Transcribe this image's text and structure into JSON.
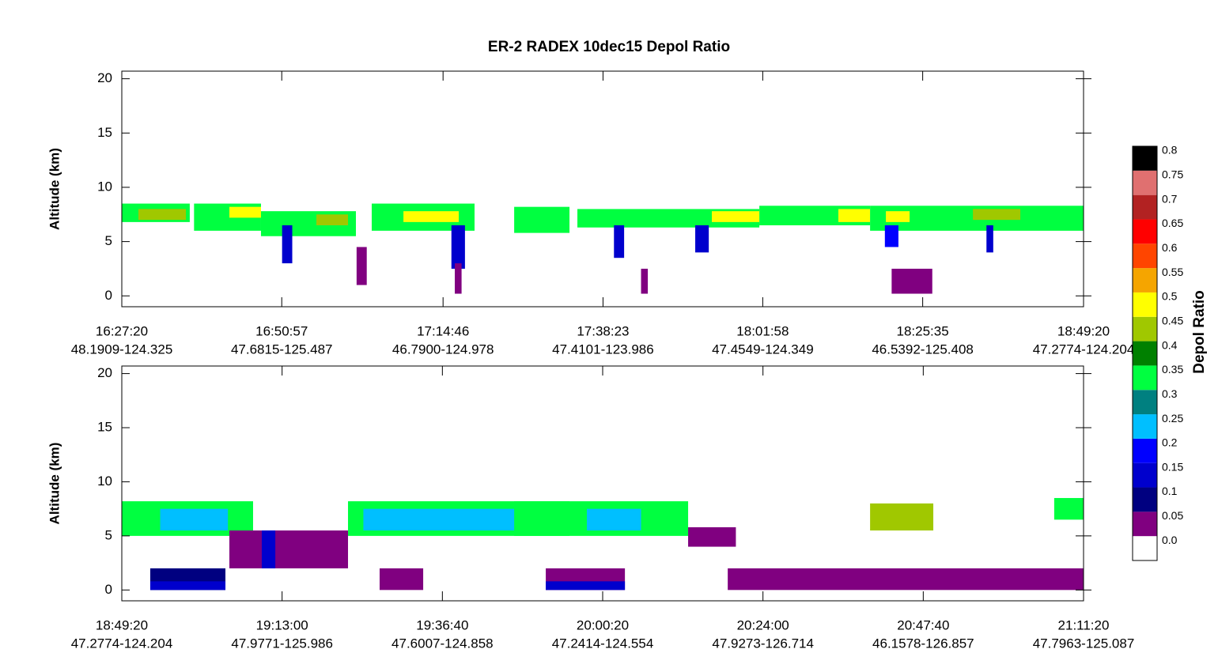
{
  "title": "ER-2 RADEX 10dec15 Depol Ratio",
  "chart_data": [
    {
      "type": "curtain",
      "ylabel": "Altitude (km)",
      "ylim": [
        -1,
        20.7
      ],
      "yticks": [
        0,
        5,
        10,
        15,
        20
      ],
      "xlim": [
        "16:27:20",
        "18:49:20"
      ],
      "xticks": [
        "16:27:20",
        "16:50:57",
        "17:14:46",
        "17:38:23",
        "18:01:58",
        "18:25:35",
        "18:49:20"
      ],
      "xtick_locations": [
        "48.1909-124.325",
        "47.6815-125.487",
        "46.7900-124.978",
        "47.4101-123.986",
        "47.4549-124.349",
        "46.5392-125.408",
        "47.2774-124.204"
      ],
      "segments": [
        {
          "start": "16:27:20",
          "end": "16:37:22",
          "base": 6.8,
          "top": 8.5,
          "value": 0.35
        },
        {
          "start": "16:29:47",
          "end": "16:36:48",
          "base": 7.0,
          "top": 8.0,
          "value": 0.45
        },
        {
          "start": "16:38:00",
          "end": "16:47:53",
          "base": 6.0,
          "top": 8.5,
          "value": 0.35
        },
        {
          "start": "16:43:13",
          "end": "16:47:53",
          "base": 7.2,
          "top": 8.2,
          "value": 0.5
        },
        {
          "start": "16:47:53",
          "end": "17:01:54",
          "base": 5.5,
          "top": 7.8,
          "value": 0.35
        },
        {
          "start": "16:56:04",
          "end": "17:00:44",
          "base": 6.5,
          "top": 7.5,
          "value": 0.45
        },
        {
          "start": "17:04:14",
          "end": "17:19:25",
          "base": 6.0,
          "top": 8.5,
          "value": 0.35
        },
        {
          "start": "17:08:55",
          "end": "17:17:05",
          "base": 6.8,
          "top": 7.8,
          "value": 0.5
        },
        {
          "start": "17:25:16",
          "end": "17:33:26",
          "base": 5.8,
          "top": 8.2,
          "value": 0.35
        },
        {
          "start": "17:34:36",
          "end": "18:01:28",
          "base": 6.3,
          "top": 8.0,
          "value": 0.35
        },
        {
          "start": "17:54:27",
          "end": "18:01:28",
          "base": 6.8,
          "top": 7.8,
          "value": 0.5
        },
        {
          "start": "18:01:28",
          "end": "18:17:49",
          "base": 6.5,
          "top": 8.3,
          "value": 0.35
        },
        {
          "start": "18:13:08",
          "end": "18:17:49",
          "base": 6.8,
          "top": 8.0,
          "value": 0.5
        },
        {
          "start": "18:17:49",
          "end": "18:49:20",
          "base": 6.0,
          "top": 8.3,
          "value": 0.35
        },
        {
          "start": "18:20:09",
          "end": "18:23:39",
          "base": 6.8,
          "top": 7.8,
          "value": 0.5
        },
        {
          "start": "18:33:00",
          "end": "18:40:00",
          "base": 7.0,
          "top": 8.0,
          "value": 0.45
        },
        {
          "start": "16:51:00",
          "end": "16:52:30",
          "base": 3.0,
          "top": 6.5,
          "value": 0.15
        },
        {
          "start": "17:16:00",
          "end": "17:18:00",
          "base": 2.5,
          "top": 6.5,
          "value": 0.15
        },
        {
          "start": "17:40:00",
          "end": "17:41:30",
          "base": 3.5,
          "top": 6.5,
          "value": 0.15
        },
        {
          "start": "17:52:00",
          "end": "17:54:00",
          "base": 4.0,
          "top": 6.5,
          "value": 0.15
        },
        {
          "start": "18:20:00",
          "end": "18:22:00",
          "base": 4.5,
          "top": 6.5,
          "value": 0.2
        },
        {
          "start": "18:35:00",
          "end": "18:36:00",
          "base": 4.0,
          "top": 6.5,
          "value": 0.15
        },
        {
          "start": "17:02:00",
          "end": "17:03:30",
          "base": 1.0,
          "top": 4.5,
          "value": 0.05
        },
        {
          "start": "17:16:30",
          "end": "17:17:30",
          "base": 0.2,
          "top": 3.0,
          "value": 0.05
        },
        {
          "start": "17:44:00",
          "end": "17:45:00",
          "base": 0.2,
          "top": 2.5,
          "value": 0.05
        },
        {
          "start": "18:21:00",
          "end": "18:27:00",
          "base": 0.2,
          "top": 2.5,
          "value": 0.05
        }
      ]
    },
    {
      "type": "curtain",
      "ylabel": "Altitude (km)",
      "ylim": [
        -1,
        20.7
      ],
      "yticks": [
        0,
        5,
        10,
        15,
        20
      ],
      "xlim": [
        "18:49:20",
        "21:11:20"
      ],
      "xticks": [
        "18:49:20",
        "19:13:00",
        "19:36:40",
        "20:00:20",
        "20:24:00",
        "20:47:40",
        "21:11:20"
      ],
      "xtick_locations": [
        "47.2774-124.204",
        "47.9771-125.986",
        "47.6007-124.858",
        "47.2414-124.554",
        "47.9273-126.714",
        "46.1578-126.857",
        "47.7963-125.087"
      ],
      "segments": [
        {
          "start": "18:49:20",
          "end": "19:08:43",
          "base": 5.0,
          "top": 8.2,
          "value": 0.35
        },
        {
          "start": "18:55:00",
          "end": "19:05:00",
          "base": 5.5,
          "top": 7.5,
          "value": 0.25
        },
        {
          "start": "19:22:44",
          "end": "19:55:26",
          "base": 5.0,
          "top": 8.2,
          "value": 0.35
        },
        {
          "start": "19:25:00",
          "end": "19:50:00",
          "base": 5.5,
          "top": 7.5,
          "value": 0.25
        },
        {
          "start": "19:47:16",
          "end": "20:12:57",
          "base": 5.0,
          "top": 8.2,
          "value": 0.35
        },
        {
          "start": "19:58:00",
          "end": "20:06:00",
          "base": 5.5,
          "top": 7.5,
          "value": 0.25
        },
        {
          "start": "20:12:57",
          "end": "20:20:00",
          "base": 4.0,
          "top": 5.8,
          "value": 0.05
        },
        {
          "start": "20:39:49",
          "end": "20:49:09",
          "base": 5.5,
          "top": 8.0,
          "value": 0.45
        },
        {
          "start": "21:07:00",
          "end": "21:11:20",
          "base": 6.5,
          "top": 8.5,
          "value": 0.35
        },
        {
          "start": "18:53:32",
          "end": "19:04:38",
          "base": 0,
          "top": 2.0,
          "value": 0.1
        },
        {
          "start": "18:53:32",
          "end": "19:04:38",
          "base": 0,
          "top": 0.8,
          "value": 0.15
        },
        {
          "start": "19:27:24",
          "end": "19:33:50",
          "base": 0,
          "top": 2.0,
          "value": 0.05
        },
        {
          "start": "19:51:56",
          "end": "20:03:37",
          "base": 0,
          "top": 2.0,
          "value": 0.05
        },
        {
          "start": "19:51:56",
          "end": "20:03:37",
          "base": 0,
          "top": 0.8,
          "value": 0.15
        },
        {
          "start": "20:18:48",
          "end": "21:11:20",
          "base": 0,
          "top": 2.0,
          "value": 0.05
        },
        {
          "start": "19:05:13",
          "end": "19:22:44",
          "base": 2.0,
          "top": 5.5,
          "value": 0.05
        },
        {
          "start": "19:10:00",
          "end": "19:12:00",
          "base": 2.0,
          "top": 5.5,
          "value": 0.15
        }
      ]
    }
  ],
  "colorbar": {
    "label": "Depol Ratio",
    "ticks": [
      {
        "value": 0,
        "label": "0.0"
      },
      0.05,
      0.1,
      0.15,
      0.2,
      0.25,
      0.3,
      0.35,
      0.4,
      0.45,
      0.5,
      0.55,
      0.6,
      0.65,
      0.7,
      0.75,
      0.8
    ],
    "colors": [
      "#ffffff",
      "#800080",
      "#000080",
      "#0000cd",
      "#0000ff",
      "#00bfff",
      "#008080",
      "#00ff40",
      "#008000",
      "#a0c800",
      "#ffff00",
      "#f5a500",
      "#ff4500",
      "#ff0000",
      "#b22222",
      "#e07070",
      "#000000"
    ]
  }
}
